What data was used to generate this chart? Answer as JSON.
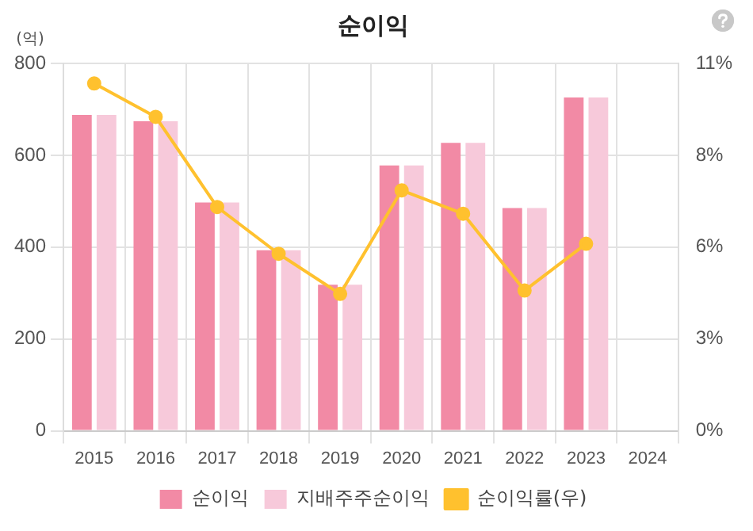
{
  "chart_data": {
    "type": "bar",
    "title": "순이익",
    "ylabel": "(억)",
    "categories": [
      "2015",
      "2016",
      "2017",
      "2018",
      "2019",
      "2020",
      "2021",
      "2022",
      "2023",
      "2024"
    ],
    "series": [
      {
        "name": "순이익",
        "color": "#f28aa5",
        "values": [
          688,
          674,
          497,
          393,
          318,
          578,
          627,
          485,
          726,
          null
        ]
      },
      {
        "name": "지배주주순이익",
        "color": "#f7c9da",
        "values": [
          688,
          674,
          497,
          393,
          318,
          578,
          627,
          485,
          726,
          null
        ]
      },
      {
        "name": "순이익률(우)",
        "type": "line",
        "axis": "y2",
        "color": "#ffc12e",
        "marker": "circle",
        "values": [
          10.4,
          9.4,
          6.7,
          5.3,
          4.1,
          7.2,
          6.5,
          4.2,
          5.6,
          null
        ]
      }
    ],
    "ylim": [
      0,
      800
    ],
    "yticks": [
      0,
      200,
      400,
      600,
      800
    ],
    "y2lim": [
      0,
      11
    ],
    "y2ticks": [
      {
        "value": 0,
        "label": "0%"
      },
      {
        "value": 2.75,
        "label": "3%"
      },
      {
        "value": 5.5,
        "label": "6%"
      },
      {
        "value": 8.25,
        "label": "8%"
      },
      {
        "value": 11,
        "label": "11%"
      }
    ],
    "grid": true,
    "legend": "bottom"
  }
}
